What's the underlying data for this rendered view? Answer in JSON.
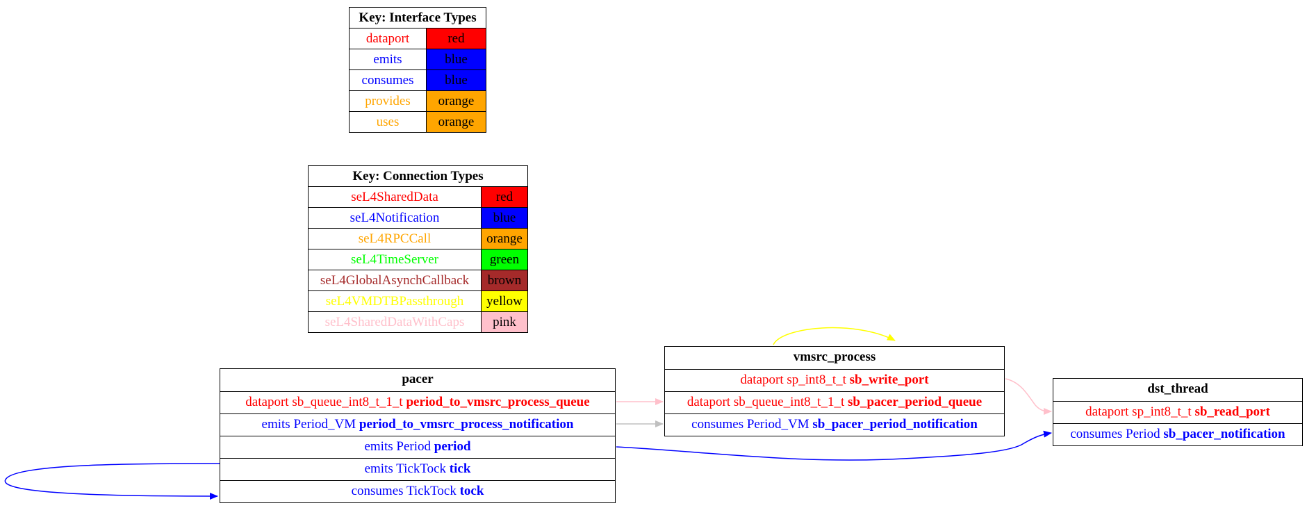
{
  "interface_key": {
    "title": "Key: Interface Types",
    "rows": [
      {
        "name": "dataport",
        "color_label": "red",
        "color": "#ff0000"
      },
      {
        "name": "emits",
        "color_label": "blue",
        "color": "#0000ff"
      },
      {
        "name": "consumes",
        "color_label": "blue",
        "color": "#0000ff"
      },
      {
        "name": "provides",
        "color_label": "orange",
        "color": "#ffa500"
      },
      {
        "name": "uses",
        "color_label": "orange",
        "color": "#ffa500"
      }
    ]
  },
  "connection_key": {
    "title": "Key: Connection Types",
    "rows": [
      {
        "name": "seL4SharedData",
        "color_label": "red",
        "color": "#ff0000"
      },
      {
        "name": "seL4Notification",
        "color_label": "blue",
        "color": "#0000ff"
      },
      {
        "name": "seL4RPCCall",
        "color_label": "orange",
        "color": "#ffa500"
      },
      {
        "name": "seL4TimeServer",
        "color_label": "green",
        "color": "#00ff00"
      },
      {
        "name": "seL4GlobalAsynchCallback",
        "color_label": "brown",
        "color": "#a52a2a"
      },
      {
        "name": "seL4VMDTBPassthrough",
        "color_label": "yellow",
        "color": "#ffff00"
      },
      {
        "name": "seL4SharedDataWithCaps",
        "color_label": "pink",
        "color": "#ffc0cb"
      }
    ]
  },
  "components": {
    "pacer": {
      "name": "pacer",
      "ports": [
        {
          "kind": "dataport",
          "type": "sb_queue_int8_t_1_t",
          "name": "period_to_vmsrc_process_queue",
          "color": "#ff0000"
        },
        {
          "kind": "emits",
          "type": "Period_VM",
          "name": "period_to_vmsrc_process_notification",
          "color": "#0000ff"
        },
        {
          "kind": "emits",
          "type": "Period",
          "name": "period",
          "color": "#0000ff"
        },
        {
          "kind": "emits",
          "type": "TickTock",
          "name": "tick",
          "color": "#0000ff"
        },
        {
          "kind": "consumes",
          "type": "TickTock",
          "name": "tock",
          "color": "#0000ff"
        }
      ]
    },
    "vmsrc_process": {
      "name": "vmsrc_process",
      "ports": [
        {
          "kind": "dataport",
          "type": "sp_int8_t_t",
          "name": "sb_write_port",
          "color": "#ff0000"
        },
        {
          "kind": "dataport",
          "type": "sb_queue_int8_t_1_t",
          "name": "sb_pacer_period_queue",
          "color": "#ff0000"
        },
        {
          "kind": "consumes",
          "type": "Period_VM",
          "name": "sb_pacer_period_notification",
          "color": "#0000ff"
        }
      ]
    },
    "dst_thread": {
      "name": "dst_thread",
      "ports": [
        {
          "kind": "dataport",
          "type": "sp_int8_t_t",
          "name": "sb_read_port",
          "color": "#ff0000"
        },
        {
          "kind": "consumes",
          "type": "Period",
          "name": "sb_pacer_notification",
          "color": "#0000ff"
        }
      ]
    }
  },
  "connections": [
    {
      "from": "pacer.period_to_vmsrc_process_queue",
      "to": "vmsrc_process.sb_pacer_period_queue",
      "color": "#ffc0cb"
    },
    {
      "from": "pacer.period_to_vmsrc_process_notification",
      "to": "vmsrc_process.sb_pacer_period_notification",
      "color": "#c0c0c0"
    },
    {
      "from": "pacer.period",
      "to": "dst_thread.sb_pacer_notification",
      "color": "#0000ff"
    },
    {
      "from": "pacer.tick",
      "to": "pacer.tock",
      "color": "#0000ff"
    },
    {
      "from": "vmsrc_process.sb_write_port",
      "to": "dst_thread.sb_read_port",
      "color": "#ffc0cb"
    },
    {
      "from": "vmsrc_process",
      "to": "vmsrc_process",
      "color": "#ffff00"
    }
  ]
}
